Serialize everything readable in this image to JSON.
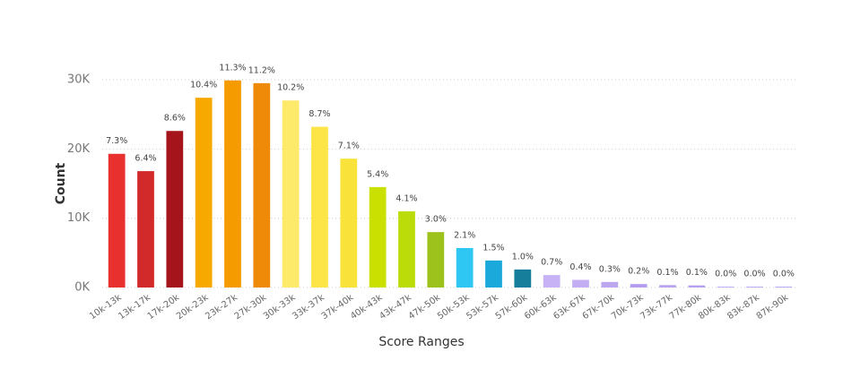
{
  "chart_data": {
    "type": "bar",
    "x_label": "Score Ranges",
    "y_label": "Count",
    "categories": [
      "10k-13k",
      "13k-17k",
      "17k-20k",
      "20k-23k",
      "23k-27k",
      "27k-30k",
      "30k-33k",
      "33k-37k",
      "37k-40k",
      "40k-43k",
      "43k-47k",
      "47k-50k",
      "50k-53k",
      "53k-57k",
      "57k-60k",
      "60k-63k",
      "63k-67k",
      "67k-70k",
      "70k-73k",
      "73k-77k",
      "77k-80k",
      "80k-83k",
      "83k-87k",
      "87k-90k"
    ],
    "values": [
      19300,
      16800,
      22600,
      27400,
      29900,
      29500,
      27000,
      23200,
      18600,
      14500,
      11000,
      8000,
      5700,
      3900,
      2600,
      1800,
      1100,
      800,
      500,
      350,
      300,
      100,
      100,
      100
    ],
    "percent_labels": [
      "7.3%",
      "6.4%",
      "8.6%",
      "10.4%",
      "11.3%",
      "11.2%",
      "10.2%",
      "8.7%",
      "7.1%",
      "5.4%",
      "4.1%",
      "3.0%",
      "2.1%",
      "1.5%",
      "1.0%",
      "0.7%",
      "0.4%",
      "0.3%",
      "0.2%",
      "0.1%",
      "0.1%",
      "0.0%",
      "0.0%",
      "0.0%"
    ],
    "colors": [
      "#e8312f",
      "#d22a2a",
      "#a5141b",
      "#f7a900",
      "#f59b00",
      "#ef8a08",
      "#fde96a",
      "#fde548",
      "#f9e23a",
      "#c9e000",
      "#bcdc0a",
      "#9ec21c",
      "#2ec6f2",
      "#1aa9da",
      "#167d9b",
      "#c6b2f4",
      "#c3aef3",
      "#bca6f0",
      "#b49cee",
      "#b9a3f0",
      "#b5a0ef",
      "#ae98ec",
      "#a993ea",
      "#a48ee8"
    ],
    "ylim": [
      0,
      30000
    ],
    "yticks": [
      {
        "value": 0,
        "label": "0K"
      },
      {
        "value": 10000,
        "label": "10K"
      },
      {
        "value": 20000,
        "label": "20K"
      },
      {
        "value": 30000,
        "label": "30K"
      }
    ],
    "grid": true
  }
}
